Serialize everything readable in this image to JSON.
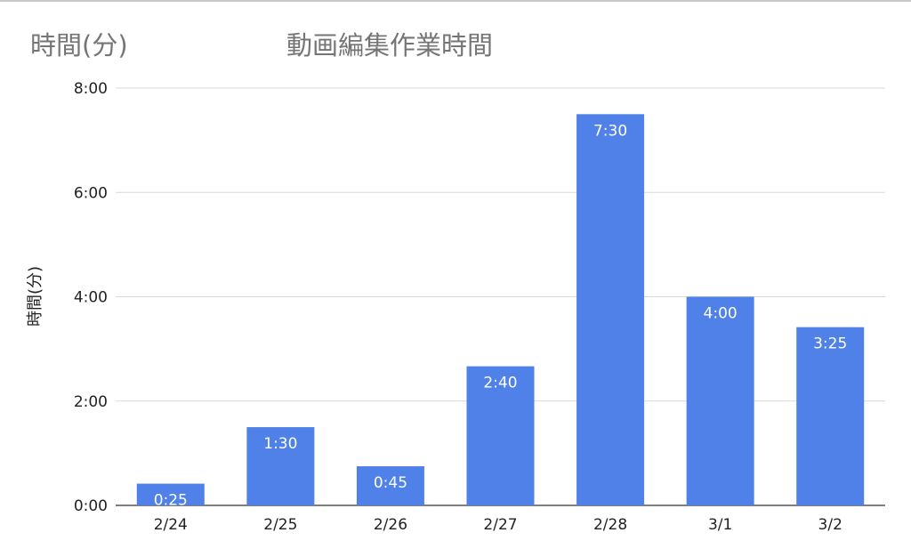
{
  "chart_data": {
    "type": "bar",
    "title": "動画編集作業時間",
    "corner_label": "時間(分)",
    "ylabel": "時間(分)",
    "xlabel": "",
    "categories": [
      "2/24",
      "2/25",
      "2/26",
      "2/27",
      "2/28",
      "3/1",
      "3/2"
    ],
    "values": [
      25,
      90,
      45,
      160,
      450,
      240,
      205
    ],
    "data_labels": [
      "0:25",
      "1:30",
      "0:45",
      "2:40",
      "7:30",
      "4:00",
      "3:25"
    ],
    "yticks": [
      0,
      120,
      240,
      360,
      480
    ],
    "ytick_labels": [
      "0:00",
      "2:00",
      "4:00",
      "6:00",
      "8:00"
    ],
    "ylim": [
      0,
      480
    ],
    "grid": true,
    "legend": "none",
    "bar_color": "#4f81e9",
    "label_color": "#ffffff",
    "grid_color": "#d9d9d9",
    "axis_text_color": "#222222",
    "title_color": "#757575"
  }
}
